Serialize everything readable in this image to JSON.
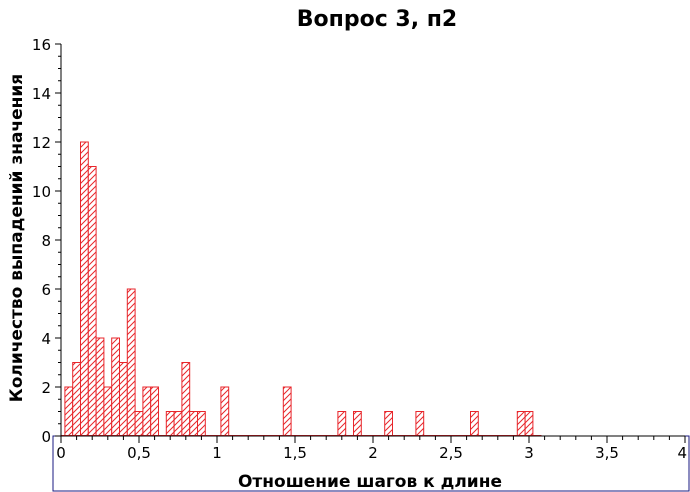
{
  "chart_data": {
    "type": "bar",
    "title": "Вопрос 3, п2",
    "xlabel": "Отношение шагов к длине",
    "ylabel": "Количество выпадений значения",
    "xlim": [
      0,
      4
    ],
    "ylim": [
      0,
      16
    ],
    "bin_width": 0.05,
    "x_ticks": [
      {
        "value": 0,
        "label": "0"
      },
      {
        "value": 0.5,
        "label": "0,5"
      },
      {
        "value": 1,
        "label": "1"
      },
      {
        "value": 1.5,
        "label": "1,5"
      },
      {
        "value": 2,
        "label": "2"
      },
      {
        "value": 2.5,
        "label": "2,5"
      },
      {
        "value": 3,
        "label": "3"
      },
      {
        "value": 3.5,
        "label": "3,5"
      },
      {
        "value": 4,
        "label": "4"
      }
    ],
    "y_ticks": [
      {
        "value": 0,
        "label": "0"
      },
      {
        "value": 2,
        "label": "2"
      },
      {
        "value": 4,
        "label": "4"
      },
      {
        "value": 6,
        "label": "6"
      },
      {
        "value": 8,
        "label": "8"
      },
      {
        "value": 10,
        "label": "10"
      },
      {
        "value": 12,
        "label": "12"
      },
      {
        "value": 14,
        "label": "14"
      },
      {
        "value": 16,
        "label": "16"
      }
    ],
    "bins": [
      {
        "x": 0.05,
        "value": 2
      },
      {
        "x": 0.1,
        "value": 3
      },
      {
        "x": 0.15,
        "value": 12
      },
      {
        "x": 0.2,
        "value": 11
      },
      {
        "x": 0.25,
        "value": 4
      },
      {
        "x": 0.3,
        "value": 2
      },
      {
        "x": 0.35,
        "value": 4
      },
      {
        "x": 0.4,
        "value": 3
      },
      {
        "x": 0.45,
        "value": 6
      },
      {
        "x": 0.5,
        "value": 1
      },
      {
        "x": 0.55,
        "value": 2
      },
      {
        "x": 0.6,
        "value": 2
      },
      {
        "x": 0.7,
        "value": 1
      },
      {
        "x": 0.75,
        "value": 1
      },
      {
        "x": 0.8,
        "value": 3
      },
      {
        "x": 0.85,
        "value": 1
      },
      {
        "x": 0.9,
        "value": 1
      },
      {
        "x": 1.05,
        "value": 2
      },
      {
        "x": 1.45,
        "value": 2
      },
      {
        "x": 1.8,
        "value": 1
      },
      {
        "x": 1.9,
        "value": 1
      },
      {
        "x": 2.1,
        "value": 1
      },
      {
        "x": 2.3,
        "value": 1
      },
      {
        "x": 2.65,
        "value": 1
      },
      {
        "x": 2.95,
        "value": 1
      },
      {
        "x": 3.0,
        "value": 1
      }
    ],
    "grid": false,
    "bar_color": "#e8262b",
    "frame_color": "#1a1a80"
  }
}
